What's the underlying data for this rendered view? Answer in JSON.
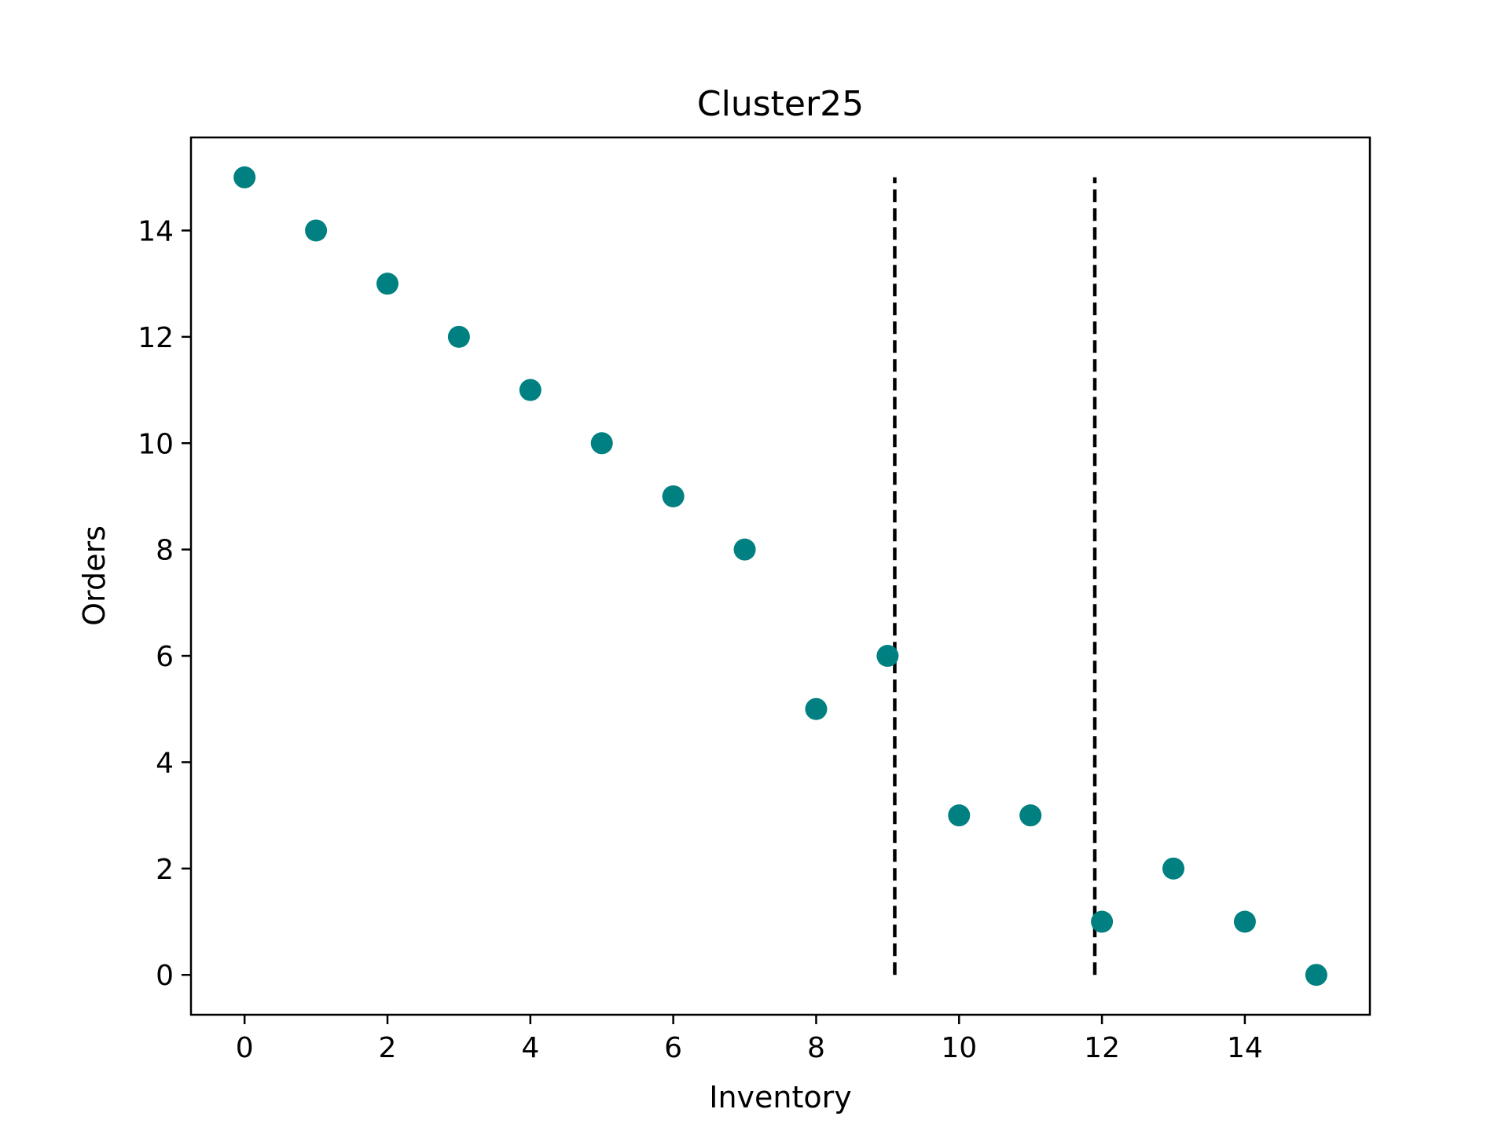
{
  "chart_data": {
    "type": "scatter",
    "title": "Cluster25",
    "xlabel": "Inventory",
    "ylabel": "Orders",
    "xlim": [
      -0.75,
      15.75
    ],
    "ylim": [
      -0.75,
      15.75
    ],
    "xticks": [
      0,
      2,
      4,
      6,
      8,
      10,
      12,
      14
    ],
    "yticks": [
      0,
      2,
      4,
      6,
      8,
      10,
      12,
      14
    ],
    "grid": false,
    "marker_color": "#008080",
    "series": [
      {
        "x": [
          0,
          1,
          2,
          3,
          4,
          5,
          6,
          7,
          8,
          9,
          10,
          11,
          12,
          13,
          14,
          15
        ],
        "y": [
          15,
          14,
          13,
          12,
          11,
          10,
          9,
          8,
          5,
          6,
          3,
          3,
          1,
          2,
          1,
          0
        ]
      }
    ],
    "vlines": [
      {
        "x": 9.1,
        "ymin": 0,
        "ymax": 15,
        "style": "dashed",
        "color": "#000000"
      },
      {
        "x": 11.9,
        "ymin": 0,
        "ymax": 15,
        "style": "dashed",
        "color": "#000000"
      }
    ]
  }
}
